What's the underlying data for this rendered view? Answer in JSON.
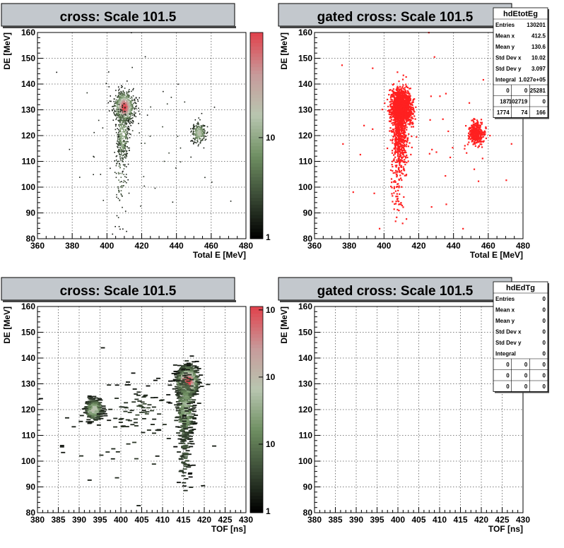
{
  "colors": {
    "title_bg": "#c3c8cd",
    "gated": "#ff2020",
    "frame": "#000000",
    "grid": "#555555",
    "palette": [
      "#000000",
      "#3a4a35",
      "#6f8f62",
      "#b8c6b0",
      "#c79b9b",
      "#e0454f"
    ]
  },
  "chart_data": [
    {
      "id": "pad1",
      "type": "heatmap",
      "title": "cross: Scale 101.5",
      "xlabel": "Total E [MeV]",
      "ylabel": "DE [MeV]",
      "xlim": [
        360,
        480
      ],
      "ylim": [
        80,
        160
      ],
      "xticks": [
        "360",
        "380",
        "400",
        "420",
        "440",
        "460",
        "480"
      ],
      "yticks": [
        "80",
        "90",
        "100",
        "110",
        "120",
        "130",
        "140",
        "150",
        "160"
      ],
      "colorbar": {
        "log": true,
        "ticks": [
          "1",
          "10"
        ]
      },
      "grid": true,
      "clusters": [
        {
          "cx": 410,
          "cy": 131,
          "sx": 2.8,
          "sy": 3.0,
          "n": 900,
          "peak": 1.0
        },
        {
          "cx": 409,
          "cy": 120,
          "sx": 1.8,
          "sy": 5.5,
          "n": 320,
          "peak": 0.5
        },
        {
          "cx": 408,
          "cy": 105,
          "sx": 2.0,
          "sy": 8.0,
          "n": 90,
          "peak": 0.25
        },
        {
          "cx": 453,
          "cy": 121,
          "sx": 2.0,
          "sy": 2.0,
          "n": 260,
          "peak": 0.6
        },
        {
          "cx": 420,
          "cy": 118,
          "sx": 28,
          "sy": 18,
          "n": 55,
          "peak": 0.1
        }
      ]
    },
    {
      "id": "pad2",
      "type": "heatmap",
      "title": "gated cross: Scale 101.5",
      "xlabel": "Total E [MeV]",
      "ylabel": "DE [MeV]",
      "xlim": [
        360,
        480
      ],
      "ylim": [
        80,
        160
      ],
      "xticks": [
        "360",
        "380",
        "400",
        "420",
        "440",
        "460",
        "480"
      ],
      "yticks": [
        "80",
        "90",
        "100",
        "110",
        "120",
        "130",
        "140",
        "150",
        "160"
      ],
      "grid": true,
      "mono": true,
      "clusters": [
        {
          "cx": 410,
          "cy": 131,
          "sx": 3.0,
          "sy": 3.2,
          "n": 1400,
          "peak": 1.0
        },
        {
          "cx": 409,
          "cy": 120,
          "sx": 2.0,
          "sy": 6.0,
          "n": 450,
          "peak": 0.5
        },
        {
          "cx": 408,
          "cy": 105,
          "sx": 2.2,
          "sy": 8.0,
          "n": 110,
          "peak": 0.25
        },
        {
          "cx": 453,
          "cy": 121,
          "sx": 2.0,
          "sy": 2.0,
          "n": 380,
          "peak": 0.6
        },
        {
          "cx": 420,
          "cy": 118,
          "sx": 28,
          "sy": 18,
          "n": 55,
          "peak": 0.1
        }
      ],
      "stats": {
        "name": "hdEtotEg",
        "rows": [
          [
            "Entries",
            "130201"
          ],
          [
            "Mean x",
            "412.5"
          ],
          [
            "Mean y",
            "130.6"
          ],
          [
            "Std Dev x",
            "10.02"
          ],
          [
            "Std Dev y",
            "3.097"
          ],
          [
            "Integral",
            "1.027e+05"
          ]
        ],
        "grid": [
          [
            "0",
            "0",
            "25281"
          ],
          [
            "187",
            "102719",
            "0"
          ],
          [
            "1774",
            "74",
            "166"
          ]
        ]
      }
    },
    {
      "id": "pad3",
      "type": "heatmap",
      "title": "cross: Scale 101.5",
      "xlabel": "TOF [ns]",
      "ylabel": "DE [MeV]",
      "xlim": [
        380,
        430
      ],
      "ylim": [
        80,
        160
      ],
      "xticks": [
        "380",
        "385",
        "390",
        "395",
        "400",
        "405",
        "410",
        "415",
        "420",
        "425",
        "430"
      ],
      "yticks": [
        "80",
        "90",
        "100",
        "110",
        "120",
        "130",
        "140",
        "150",
        "160"
      ],
      "colorbar": {
        "log": true,
        "ticks": [
          "1",
          "10",
          "10",
          "10"
        ]
      },
      "grid": true,
      "bins": true,
      "clusters": [
        {
          "cx": 416,
          "cy": 131,
          "sx": 1.2,
          "sy": 3.0,
          "n": 700,
          "peak": 1.0
        },
        {
          "cx": 415.5,
          "cy": 120,
          "sx": 1.0,
          "sy": 7.0,
          "n": 300,
          "peak": 0.5
        },
        {
          "cx": 415.5,
          "cy": 104,
          "sx": 0.8,
          "sy": 8.0,
          "n": 80,
          "peak": 0.2
        },
        {
          "cx": 393.5,
          "cy": 120,
          "sx": 1.0,
          "sy": 2.2,
          "n": 260,
          "peak": 0.6
        },
        {
          "cx": 404,
          "cy": 120,
          "sx": 4.0,
          "sy": 5.0,
          "n": 60,
          "peak": 0.15
        },
        {
          "cx": 400,
          "cy": 110,
          "sx": 9.0,
          "sy": 12.0,
          "n": 50,
          "peak": 0.1
        }
      ]
    },
    {
      "id": "pad4",
      "type": "heatmap",
      "title": "gated cross: Scale 101.5",
      "xlabel": "TOF [ns]",
      "ylabel": "DE [MeV]",
      "xlim": [
        380,
        430
      ],
      "ylim": [
        80,
        160
      ],
      "xticks": [
        "380",
        "385",
        "390",
        "395",
        "400",
        "405",
        "410",
        "415",
        "420",
        "425",
        "430"
      ],
      "yticks": [
        "80",
        "90",
        "100",
        "110",
        "120",
        "130",
        "140",
        "150",
        "160"
      ],
      "grid": true,
      "clusters": [],
      "stats": {
        "name": "hdEdTg",
        "rows": [
          [
            "Entries",
            "0"
          ],
          [
            "Mean x",
            "0"
          ],
          [
            "Mean y",
            "0"
          ],
          [
            "Std Dev x",
            "0"
          ],
          [
            "Std Dev y",
            "0"
          ],
          [
            "Integral",
            "0"
          ]
        ],
        "grid": [
          [
            "0",
            "0",
            "0"
          ],
          [
            "0",
            "0",
            "0"
          ],
          [
            "0",
            "0",
            "0"
          ]
        ]
      }
    }
  ]
}
